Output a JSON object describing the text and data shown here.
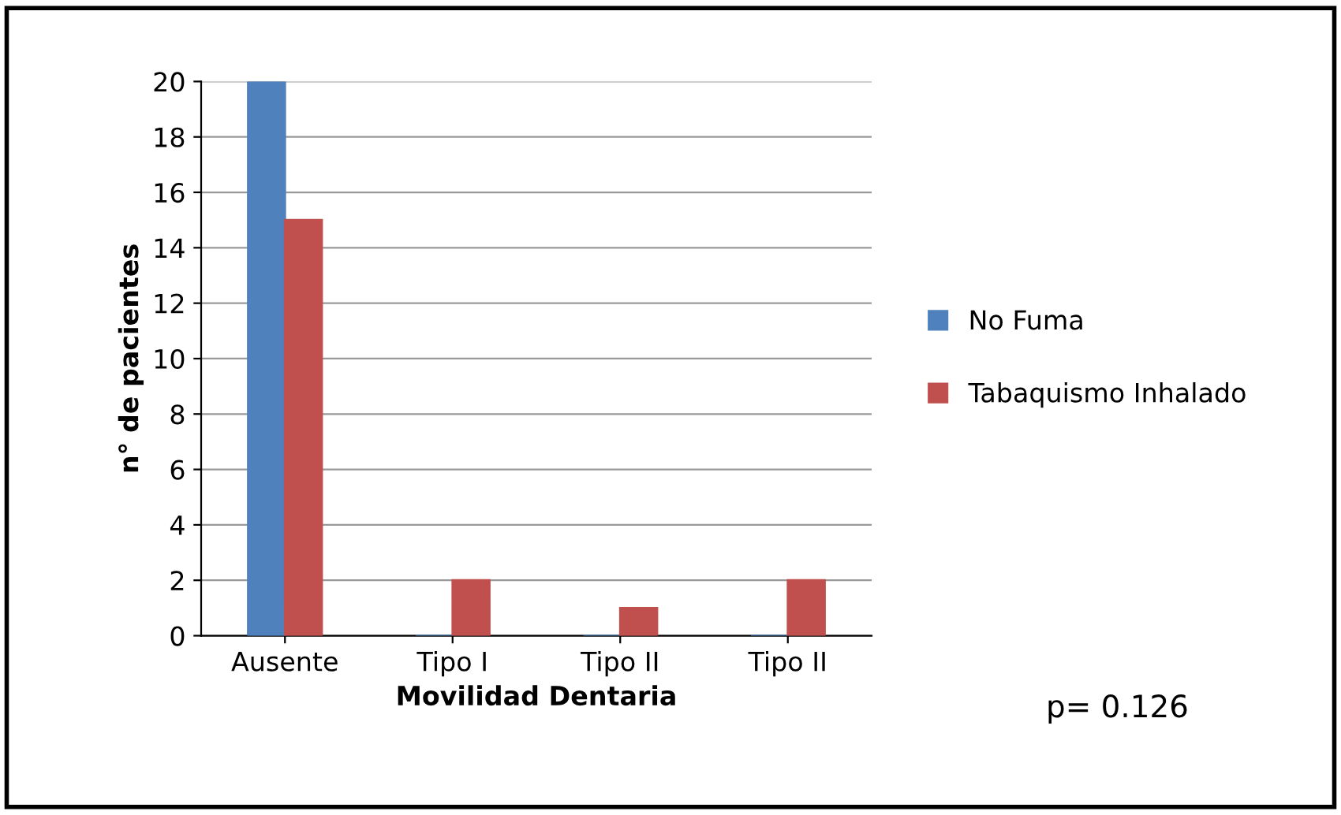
{
  "chart_data": {
    "type": "bar",
    "xlabel": "Movilidad Dentaria",
    "ylabel": "n° de pacientes",
    "categories": [
      "Ausente",
      "Tipo I",
      "Tipo II",
      "Tipo II"
    ],
    "series": [
      {
        "name": "No Fuma",
        "color": "#4f81bd",
        "values": [
          20,
          0,
          0,
          0
        ]
      },
      {
        "name": "Tabaquismo Inhalado",
        "color": "#c0504d",
        "values": [
          15,
          2,
          1,
          2
        ]
      }
    ],
    "ylim": [
      0,
      20
    ],
    "yticks": [
      0,
      2,
      4,
      6,
      8,
      10,
      12,
      14,
      16,
      18,
      20
    ],
    "grid": "y",
    "legend": "right",
    "annotations": [
      "p= 0.126"
    ]
  }
}
